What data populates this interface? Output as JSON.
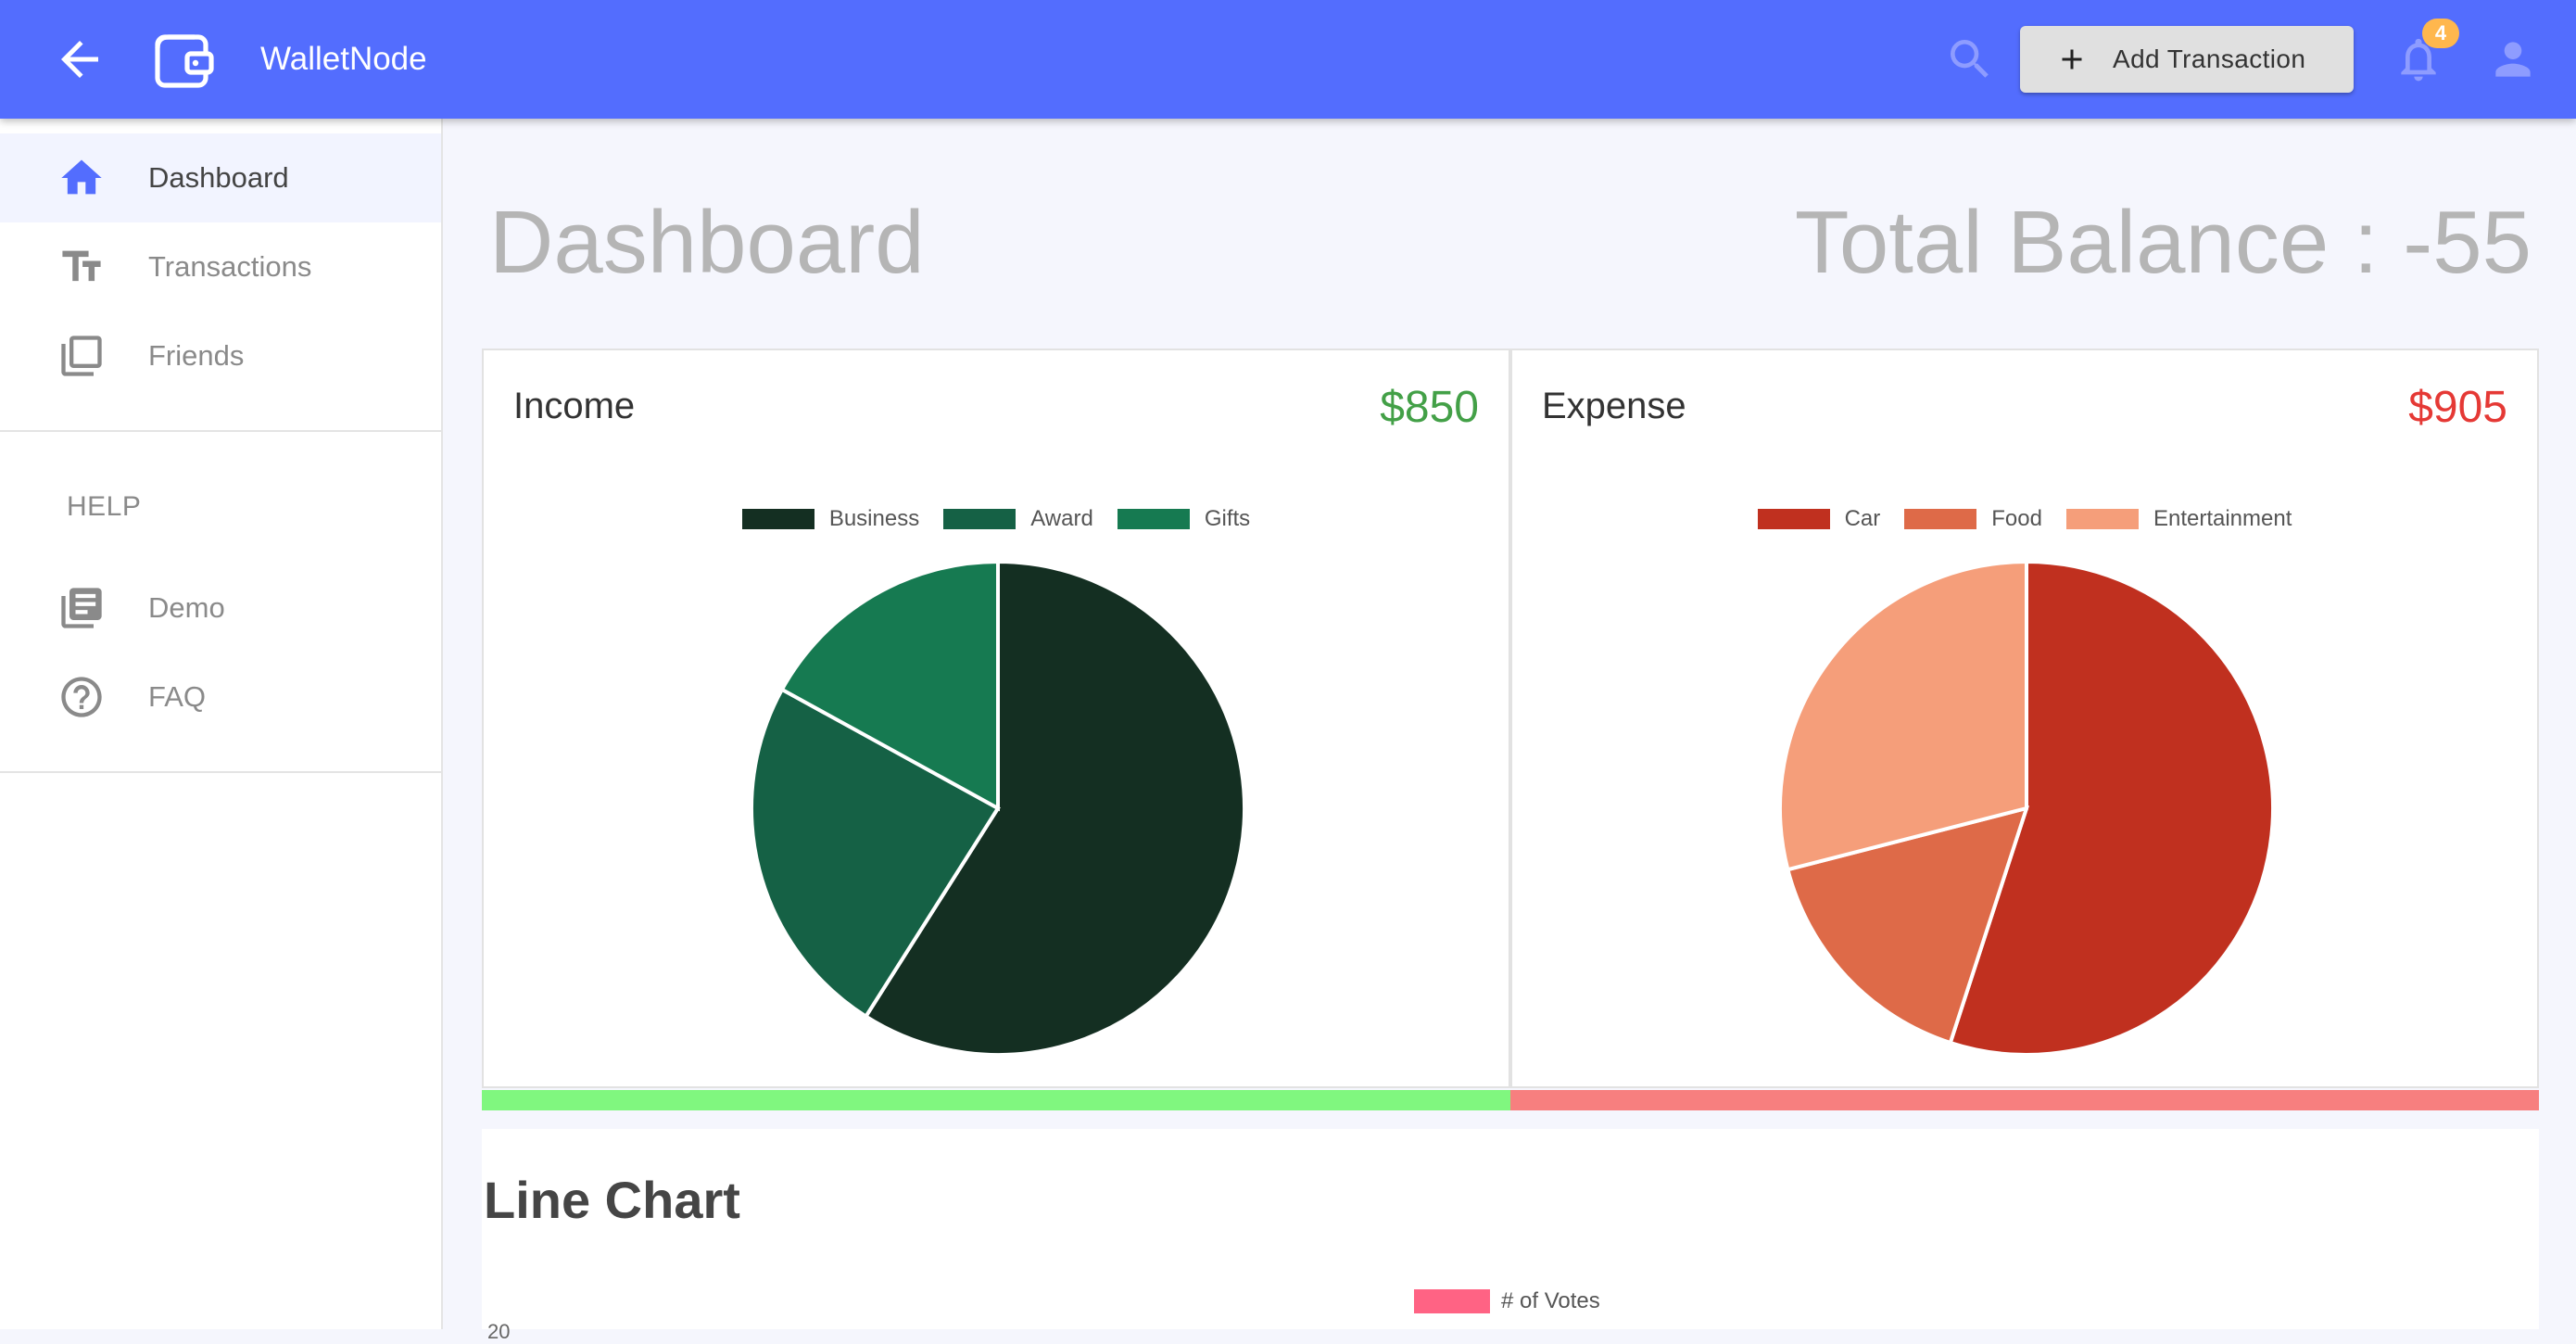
{
  "appbar": {
    "brand": "WalletNode",
    "add_transaction_label": "Add Transaction",
    "notification_count": "4",
    "color": "#536dfe"
  },
  "sidebar": {
    "items": [
      {
        "label": "Dashboard",
        "icon": "home-icon",
        "active": true
      },
      {
        "label": "Transactions",
        "icon": "text-fields-icon"
      },
      {
        "label": "Friends",
        "icon": "library-icon"
      }
    ],
    "help_title": "HELP",
    "help_items": [
      {
        "label": "Demo",
        "icon": "library-books-icon"
      },
      {
        "label": "FAQ",
        "icon": "help-circle-icon"
      }
    ]
  },
  "main": {
    "title": "Dashboard",
    "balance": "Total Balance : -55"
  },
  "income": {
    "title": "Income",
    "amount": "$850",
    "amount_color": "#43a047",
    "bar_color": "#80f77f"
  },
  "expense": {
    "title": "Expense",
    "amount": "$905",
    "amount_color": "#e53935",
    "bar_color": "#f77f7f"
  },
  "line_chart": {
    "title": "Line Chart",
    "legend": "# of Votes",
    "y_tick_top": "20",
    "series_color": "#ff6384"
  },
  "chart_data": [
    {
      "type": "pie",
      "categories": [
        "Business",
        "Award",
        "Gifts"
      ],
      "values": [
        59,
        24,
        17
      ],
      "colors": [
        "#142f22",
        "#156145",
        "#167a51"
      ],
      "legend": "top"
    },
    {
      "type": "pie",
      "categories": [
        "Car",
        "Food",
        "Entertainment"
      ],
      "values": [
        55,
        16,
        29
      ],
      "colors": [
        "#c0301f",
        "#de6a48",
        "#f59e7a"
      ],
      "legend": "top"
    }
  ]
}
